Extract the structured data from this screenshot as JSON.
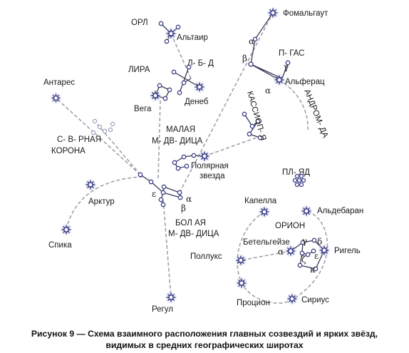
{
  "colors": {
    "star": "#3b3f86",
    "star_glow": "#b6b9dc",
    "guide_line": "#a0a0aa",
    "constellation_line": "#3a3a55"
  },
  "labels": {
    "fomalhaut": "Фомальгаут",
    "orel": "ОР͏Л",
    "altair": "Альтаир",
    "lebed": "Л- Б- Д͏",
    "peg": "П- ГАС",
    "lira": "ЛИРА",
    "antares": "Антарес",
    "vega": "Вега",
    "deneb": "Денеб",
    "alpheratz": "Альферац",
    "andromeda": "АНДРОМ- ДА",
    "cassiopeia": "КАССИОП- Я",
    "severnaya_korona": "С- В- РНАЯ\nКОРОНА",
    "malaya_medveditsa": "МАЛАЯ\nМ- ДВ- ДИЦА",
    "polaris": "Полярная\nзвезда",
    "pleiades": "ПЛ- ЯД͏",
    "arcturus": "Арктур",
    "spica": "Спика",
    "bolshaya_medveditsa": "БОЛ͏͏ АЯ\nМ- ДВ- ДИЦА",
    "capella": "Капелла",
    "aldebaran": "Альдебаран",
    "orion": "ОРИОН",
    "betelgeuse": "Бетельгейзе",
    "rigel": "Ригель",
    "pollux": "Поллукс",
    "regulus": "Регул",
    "procyon": "Процион",
    "sirius": "Сириус"
  },
  "greek": {
    "peg_alpha": "α",
    "peg_beta": "β",
    "peg_gamma": "γ",
    "and_alpha": "α",
    "uma_epsilon": "ε",
    "uma_alpha": "α",
    "uma_beta": "β",
    "ori_gamma": "γ",
    "ori_delta": "δ",
    "ori_alpha": "α",
    "ori_epsilon": "ε",
    "ori_zeta": "ζ",
    "ori_kappa": "κ"
  },
  "caption": {
    "line1": "Рисунок 9 — Схема взаимного расположения главных созвездий и ярких звёзд,",
    "line2": "видимых в средних географических широтах"
  }
}
